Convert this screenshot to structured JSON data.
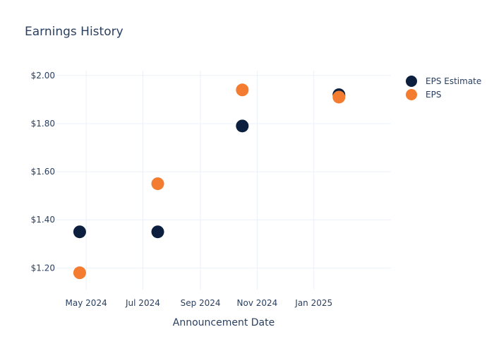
{
  "chart_data": {
    "type": "scatter",
    "title": "Earnings History",
    "xlabel": "Announcement Date",
    "ylabel": "",
    "x_axis_type": "date",
    "xlim": [
      "2024-03-30",
      "2025-03-25"
    ],
    "ylim": [
      1.11,
      2.02
    ],
    "x_ticks": [
      {
        "date": "2024-05-01",
        "label": "May 2024"
      },
      {
        "date": "2024-07-01",
        "label": "Jul 2024"
      },
      {
        "date": "2024-09-01",
        "label": "Sep 2024"
      },
      {
        "date": "2024-11-01",
        "label": "Nov 2024"
      },
      {
        "date": "2025-01-01",
        "label": "Jan 2025"
      }
    ],
    "y_ticks": [
      {
        "value": 1.2,
        "label": "$1.20"
      },
      {
        "value": 1.4,
        "label": "$1.40"
      },
      {
        "value": 1.6,
        "label": "$1.60"
      },
      {
        "value": 1.8,
        "label": "$1.80"
      },
      {
        "value": 2.0,
        "label": "$2.00"
      }
    ],
    "grid": true,
    "legend_position": "top-right",
    "series": [
      {
        "name": "EPS Estimate",
        "color": "#0c1f3f",
        "points": [
          {
            "x": "2024-04-24",
            "y": 1.35
          },
          {
            "x": "2024-07-17",
            "y": 1.35
          },
          {
            "x": "2024-10-16",
            "y": 1.79
          },
          {
            "x": "2025-01-28",
            "y": 1.92
          }
        ]
      },
      {
        "name": "EPS",
        "color": "#f47c30",
        "points": [
          {
            "x": "2024-04-24",
            "y": 1.18
          },
          {
            "x": "2024-07-17",
            "y": 1.55
          },
          {
            "x": "2024-10-16",
            "y": 1.94
          },
          {
            "x": "2025-01-28",
            "y": 1.91
          }
        ]
      }
    ]
  }
}
